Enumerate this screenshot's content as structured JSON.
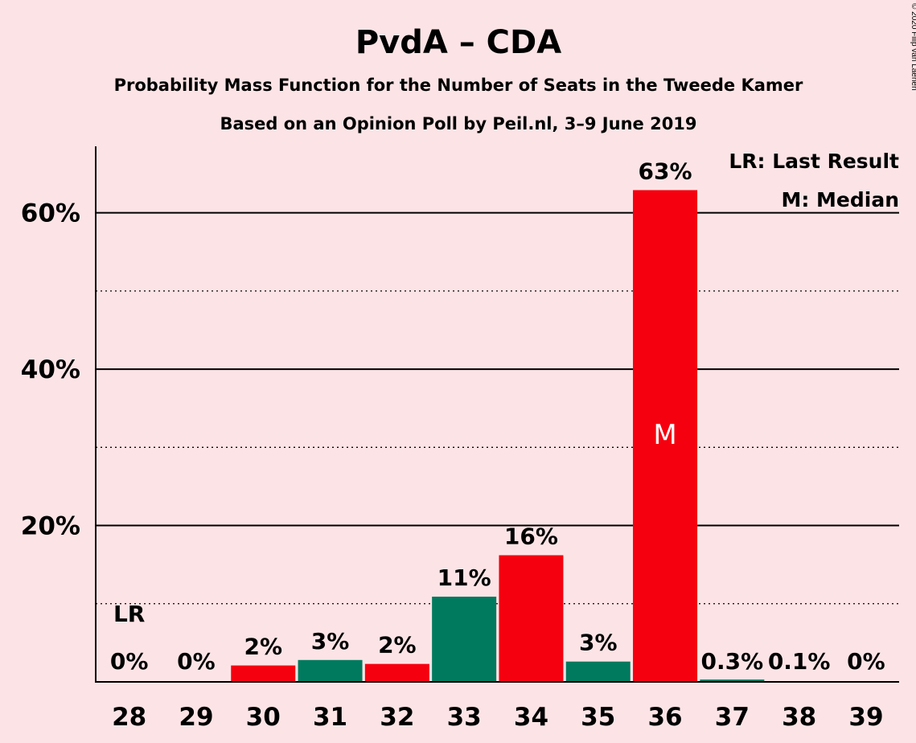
{
  "chart_data": {
    "type": "bar",
    "title": "PvdA – CDA",
    "subtitle": "Probability Mass Function for the Number of Seats in the Tweede Kamer",
    "subtitle2": "Based on an Opinion Poll by Peil.nl, 3–9 June 2019",
    "copyright": "© 2020 Filip van Laenen",
    "categories": [
      "28",
      "29",
      "30",
      "31",
      "32",
      "33",
      "34",
      "35",
      "36",
      "37",
      "38",
      "39"
    ],
    "values": [
      0,
      0,
      2.1,
      2.8,
      2.3,
      10.9,
      16.2,
      2.6,
      62.9,
      0.3,
      0.1,
      0
    ],
    "value_labels": [
      "0%",
      "0%",
      "2%",
      "3%",
      "2%",
      "11%",
      "16%",
      "3%",
      "63%",
      "0.3%",
      "0.1%",
      "0%"
    ],
    "bar_colors": [
      "#f5000f",
      "#007a5e",
      "#f5000f",
      "#007a5e",
      "#f5000f",
      "#007a5e",
      "#f5000f",
      "#007a5e",
      "#f5000f",
      "#007a5e",
      "#f5000f",
      "#007a5e"
    ],
    "ylim": [
      0,
      68.5
    ],
    "yticks": [
      20,
      40,
      60
    ],
    "ytick_labels": [
      "20%",
      "40%",
      "60%"
    ],
    "minor_gridlines": [
      10,
      30,
      50
    ],
    "last_result_category": "28",
    "last_result_marker": "LR",
    "median_category": "36",
    "median_marker": "M",
    "legend": [
      "LR: Last Result",
      "M: Median"
    ],
    "legend_position": "top-right"
  }
}
